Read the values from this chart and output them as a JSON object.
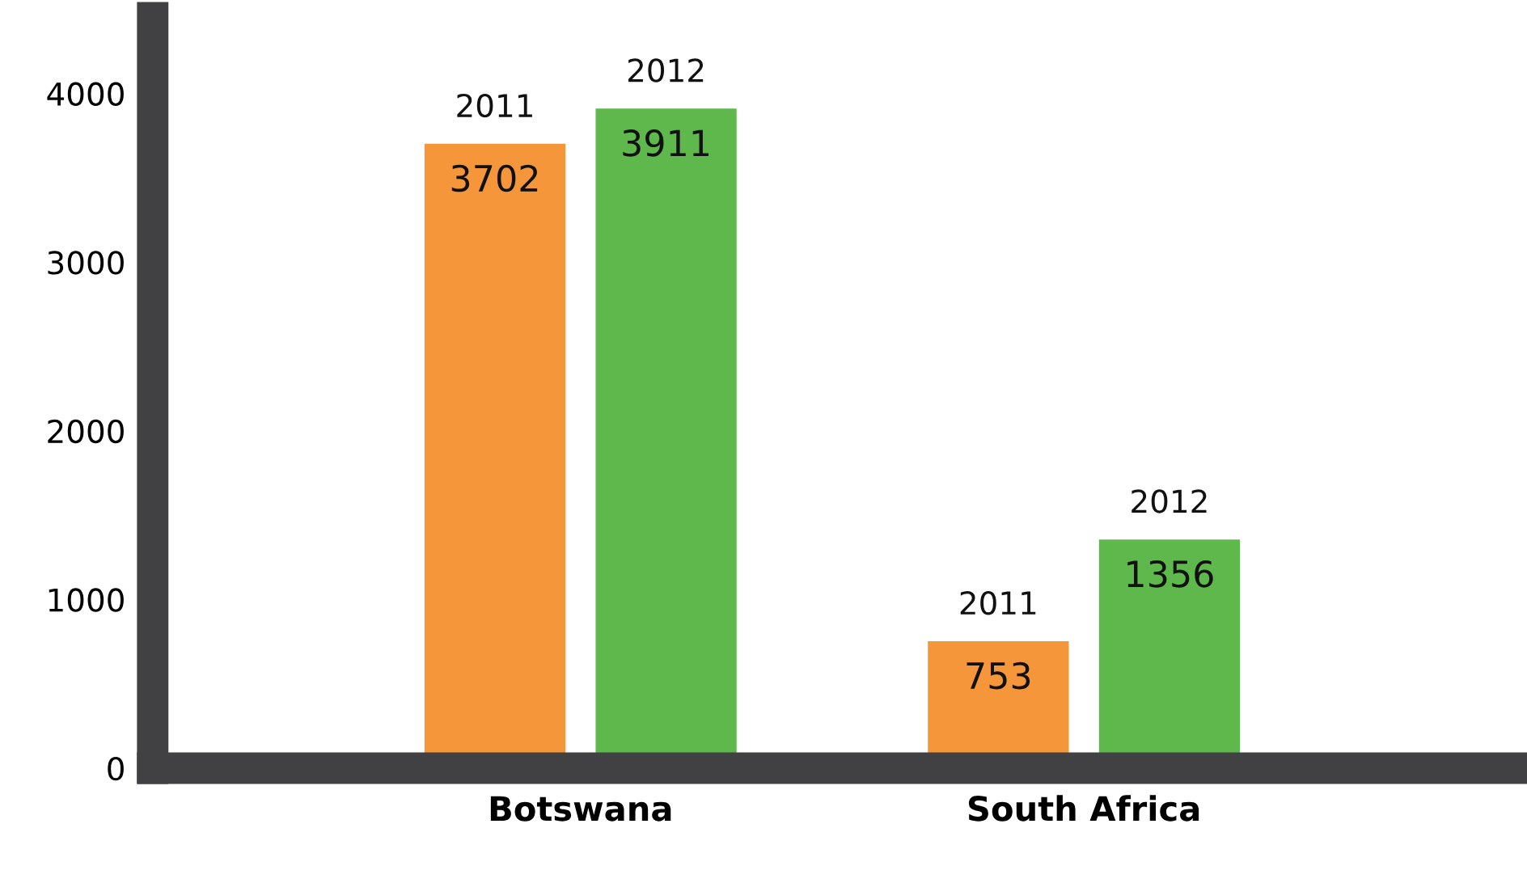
{
  "chart_data": {
    "type": "bar",
    "categories": [
      "Botswana",
      "South Africa"
    ],
    "series": [
      {
        "name": "2011",
        "color": "#f5963a",
        "values": [
          3702,
          753
        ]
      },
      {
        "name": "2012",
        "color": "#5fb84c",
        "values": [
          3911,
          1356
        ]
      }
    ],
    "ylim": [
      0,
      4450
    ],
    "yticks": [
      0,
      1000,
      2000,
      3000,
      4000
    ],
    "grid": false,
    "legend": false,
    "data_labels": true
  }
}
